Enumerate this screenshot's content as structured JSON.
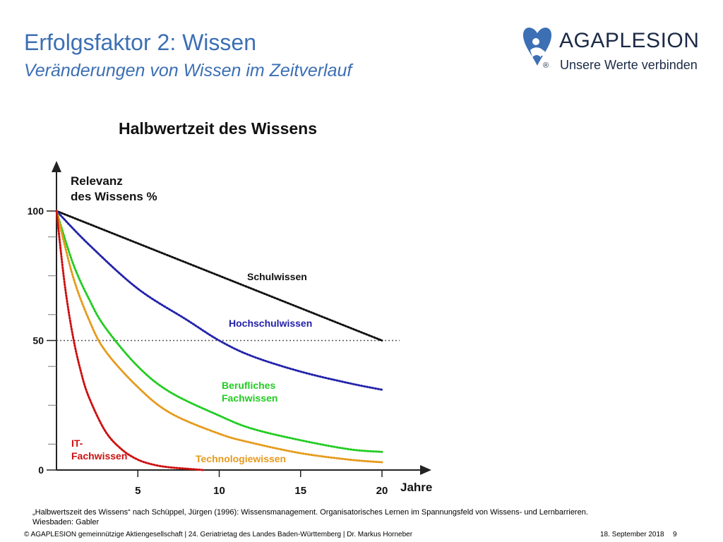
{
  "slide": {
    "title": "Erfolgsfaktor 2: Wissen",
    "subtitle": "Veränderungen von Wissen im Zeitverlauf",
    "source_line1": "„Halbwertszeit des Wissens“ nach Schüppel, Jürgen (1996): Wissensmanagement. Organisatorisches Lernen im Spannungsfeld von Wissens- und Lernbarrieren.",
    "source_line2": "Wiesbaden: Gabler",
    "footer": "© AGAPLESION gemeinnützige Aktiengesellschaft | 24. Geriatrietag des Landes Baden-Württemberg | Dr. Markus Horneber",
    "date": "18. September 2018",
    "page": "9"
  },
  "logo": {
    "name": "AGAPLESION",
    "tagline": "Unsere Werte verbinden",
    "registered": "®",
    "color": "#3c6fb4"
  },
  "chart_data": {
    "type": "line",
    "title": "Halbwertzeit des Wissens",
    "ylabel_line1": "Relevanz",
    "ylabel_line2": "des Wissens %",
    "xlabel": "Jahre",
    "xlim": [
      0,
      22
    ],
    "ylim": [
      0,
      115
    ],
    "xticks": [
      5,
      10,
      15,
      20
    ],
    "yticks": [
      0,
      50,
      100
    ],
    "reference_line": {
      "y": 50,
      "style": "dotted"
    },
    "series": [
      {
        "name": "Schulwissen",
        "color": "#111111",
        "x": [
          0,
          5,
          10,
          15,
          20
        ],
        "y": [
          100,
          87.5,
          75,
          62.5,
          50
        ]
      },
      {
        "name": "Hochschulwissen",
        "color": "#2222aa",
        "x": [
          0,
          2,
          5,
          8,
          10,
          12,
          15,
          18,
          20
        ],
        "y": [
          100,
          87,
          70,
          58,
          50,
          44,
          38,
          33.5,
          31
        ]
      },
      {
        "name": "Berufliches Fachwissen",
        "color": "#22cc22",
        "x": [
          0,
          1,
          2,
          3,
          5,
          7,
          10,
          12,
          15,
          18,
          20
        ],
        "y": [
          100,
          80,
          66,
          55,
          40,
          30,
          21,
          16,
          11.5,
          8,
          7
        ]
      },
      {
        "name": "Technologiewissen",
        "color": "#e69a1c",
        "x": [
          0,
          1,
          2,
          3,
          5,
          7,
          10,
          12,
          15,
          18,
          20
        ],
        "y": [
          100,
          75,
          58,
          46,
          32,
          22,
          14,
          10.5,
          6.5,
          4,
          3
        ]
      },
      {
        "name": "IT-Fachwissen",
        "color": "#cc1111",
        "x": [
          0,
          0.5,
          1,
          1.5,
          2,
          3,
          4,
          5,
          6,
          7,
          8,
          9
        ],
        "y": [
          100,
          72,
          52,
          38,
          28,
          15,
          8,
          4,
          2,
          1,
          0.5,
          0
        ]
      }
    ],
    "labels": [
      {
        "series": "Schulwissen",
        "lines": [
          "Schulwissen"
        ],
        "color": "#111111"
      },
      {
        "series": "Hochschulwissen",
        "lines": [
          "Hochschulwissen"
        ],
        "color": "#2222aa"
      },
      {
        "series": "Berufliches Fachwissen",
        "lines": [
          "Berufliches",
          "Fachwissen"
        ],
        "color": "#22cc22"
      },
      {
        "series": "Technologiewissen",
        "lines": [
          "Technologiewissen"
        ],
        "color": "#e69a1c"
      },
      {
        "series": "IT-Fachwissen",
        "lines": [
          "IT-",
          "Fachwissen"
        ],
        "color": "#cc1111"
      }
    ]
  }
}
